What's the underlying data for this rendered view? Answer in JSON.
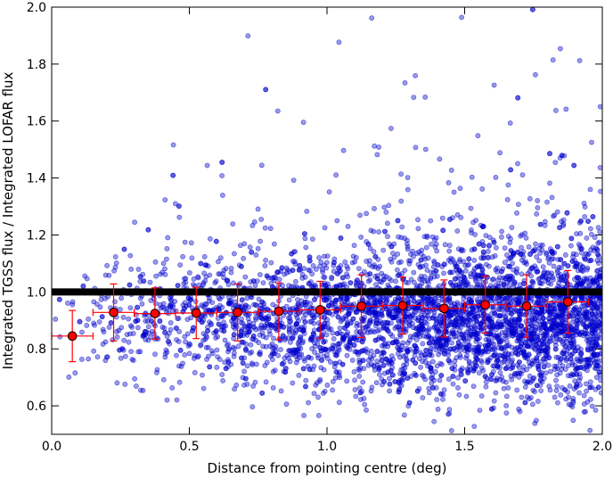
{
  "chart_data": {
    "type": "scatter",
    "title": "",
    "xlabel": "Distance from pointing centre (deg)",
    "ylabel": "Integrated TGSS flux / Integrated LOFAR flux",
    "xlim": [
      0.0,
      2.0
    ],
    "ylim": [
      0.5,
      2.0
    ],
    "xticks": [
      "0.0",
      "0.5",
      "1.0",
      "1.5",
      "2.0"
    ],
    "yticks": [
      "0.6",
      "0.8",
      "1.0",
      "1.2",
      "1.4",
      "1.6",
      "1.8",
      "2.0"
    ],
    "grid": false,
    "legend": "none",
    "reference_line": {
      "y": 1.0,
      "color": "#000000"
    },
    "scatter": {
      "color": "#0000cc",
      "alpha": 0.4,
      "approx_count": 4500,
      "center_ratio": 0.9,
      "spread_sigma_near": 0.1,
      "spread_sigma_far": 0.14,
      "density_profile": "increasing with distance"
    },
    "binned": {
      "color": "#ff0000",
      "x": [
        0.075,
        0.225,
        0.375,
        0.525,
        0.675,
        0.825,
        0.975,
        1.125,
        1.275,
        1.425,
        1.575,
        1.725,
        1.875
      ],
      "y": [
        0.845,
        0.928,
        0.924,
        0.926,
        0.928,
        0.932,
        0.937,
        0.95,
        0.952,
        0.942,
        0.955,
        0.95,
        0.965
      ],
      "xerr": [
        0.075,
        0.075,
        0.075,
        0.075,
        0.075,
        0.075,
        0.075,
        0.075,
        0.075,
        0.075,
        0.075,
        0.075,
        0.075
      ],
      "yerr": [
        0.09,
        0.1,
        0.09,
        0.09,
        0.1,
        0.1,
        0.1,
        0.11,
        0.1,
        0.1,
        0.1,
        0.11,
        0.11
      ]
    }
  }
}
